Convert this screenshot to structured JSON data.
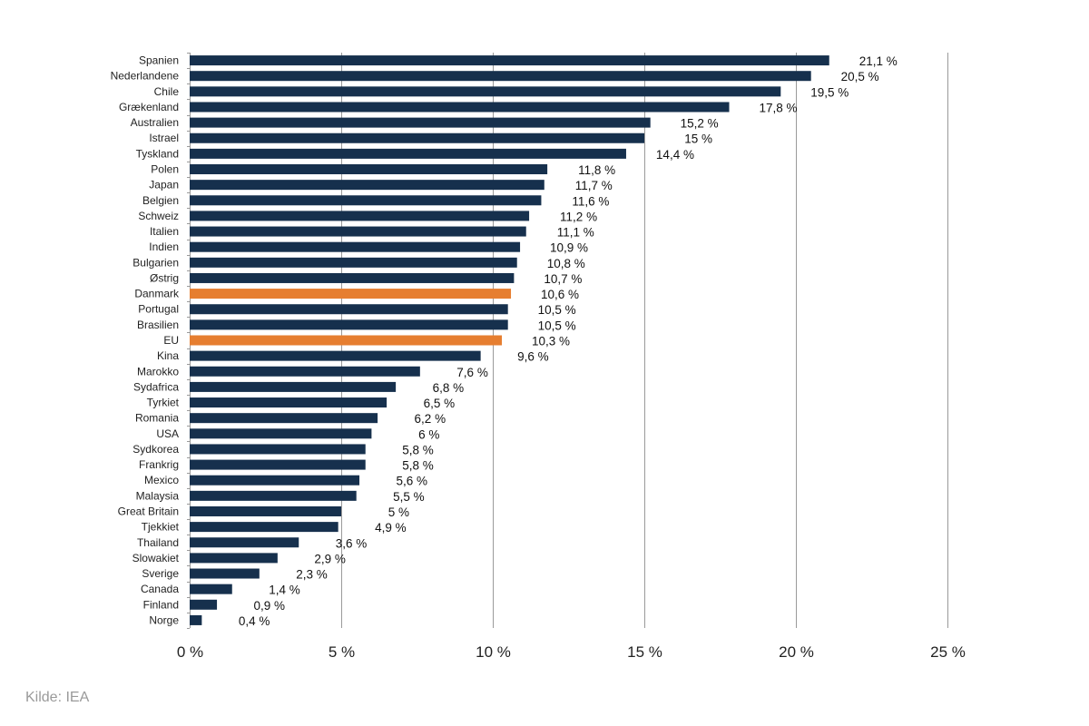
{
  "source_label": "Kilde: IEA",
  "colors": {
    "bar_default": "#16304d",
    "bar_highlight": "#e67e30",
    "grid": "#9a9a9a"
  },
  "chart_data": {
    "type": "bar",
    "orientation": "horizontal",
    "title": "",
    "xlabel": "",
    "ylabel": "",
    "xlim": [
      0,
      25
    ],
    "x_ticks": [
      {
        "value": 0,
        "label": "0 %"
      },
      {
        "value": 5,
        "label": "5 %"
      },
      {
        "value": 10,
        "label": "10 %"
      },
      {
        "value": 15,
        "label": "15 %"
      },
      {
        "value": 20,
        "label": "20 %"
      },
      {
        "value": 25,
        "label": "25 %"
      }
    ],
    "grid": "vertical",
    "highlighted": [
      "Danmark",
      "EU"
    ],
    "bars": [
      {
        "category": "Spanien",
        "value": 21.1,
        "label": "21,1 %"
      },
      {
        "category": "Nederlandene",
        "value": 20.5,
        "label": "20,5 %"
      },
      {
        "category": "Chile",
        "value": 19.5,
        "label": "19,5 %"
      },
      {
        "category": "Grækenland",
        "value": 17.8,
        "label": "17,8 %"
      },
      {
        "category": "Australien",
        "value": 15.2,
        "label": "15,2 %"
      },
      {
        "category": "Istrael",
        "value": 15,
        "label": "15 %"
      },
      {
        "category": "Tyskland",
        "value": 14.4,
        "label": "14,4 %"
      },
      {
        "category": "Polen",
        "value": 11.8,
        "label": "11,8 %"
      },
      {
        "category": "Japan",
        "value": 11.7,
        "label": "11,7 %"
      },
      {
        "category": "Belgien",
        "value": 11.6,
        "label": "11,6 %"
      },
      {
        "category": "Schweiz",
        "value": 11.2,
        "label": "11,2 %"
      },
      {
        "category": "Italien",
        "value": 11.1,
        "label": "11,1 %"
      },
      {
        "category": "Indien",
        "value": 10.9,
        "label": "10,9 %"
      },
      {
        "category": "Bulgarien",
        "value": 10.8,
        "label": "10,8 %"
      },
      {
        "category": "Østrig",
        "value": 10.7,
        "label": "10,7 %"
      },
      {
        "category": "Danmark",
        "value": 10.6,
        "label": "10,6 %"
      },
      {
        "category": "Portugal",
        "value": 10.5,
        "label": "10,5 %"
      },
      {
        "category": "Brasilien",
        "value": 10.5,
        "label": "10,5 %"
      },
      {
        "category": "EU",
        "value": 10.3,
        "label": "10,3 %"
      },
      {
        "category": "Kina",
        "value": 9.6,
        "label": "9,6 %"
      },
      {
        "category": "Marokko",
        "value": 7.6,
        "label": "7,6 %"
      },
      {
        "category": "Sydafrica",
        "value": 6.8,
        "label": "6,8 %"
      },
      {
        "category": "Tyrkiet",
        "value": 6.5,
        "label": "6,5 %"
      },
      {
        "category": "Romania",
        "value": 6.2,
        "label": "6,2 %"
      },
      {
        "category": "USA",
        "value": 6,
        "label": "6 %"
      },
      {
        "category": "Sydkorea",
        "value": 5.8,
        "label": "5,8 %"
      },
      {
        "category": "Frankrig",
        "value": 5.8,
        "label": "5,8 %"
      },
      {
        "category": "Mexico",
        "value": 5.6,
        "label": "5,6 %"
      },
      {
        "category": "Malaysia",
        "value": 5.5,
        "label": "5,5 %"
      },
      {
        "category": "Great Britain",
        "value": 5,
        "label": "5 %"
      },
      {
        "category": "Tjekkiet",
        "value": 4.9,
        "label": "4,9 %"
      },
      {
        "category": "Thailand",
        "value": 3.6,
        "label": "3,6 %"
      },
      {
        "category": "Slowakiet",
        "value": 2.9,
        "label": "2,9 %"
      },
      {
        "category": "Sverige",
        "value": 2.3,
        "label": "2,3 %"
      },
      {
        "category": "Canada",
        "value": 1.4,
        "label": "1,4 %"
      },
      {
        "category": "Finland",
        "value": 0.9,
        "label": "0,9 %"
      },
      {
        "category": "Norge",
        "value": 0.4,
        "label": "0,4 %"
      }
    ]
  }
}
